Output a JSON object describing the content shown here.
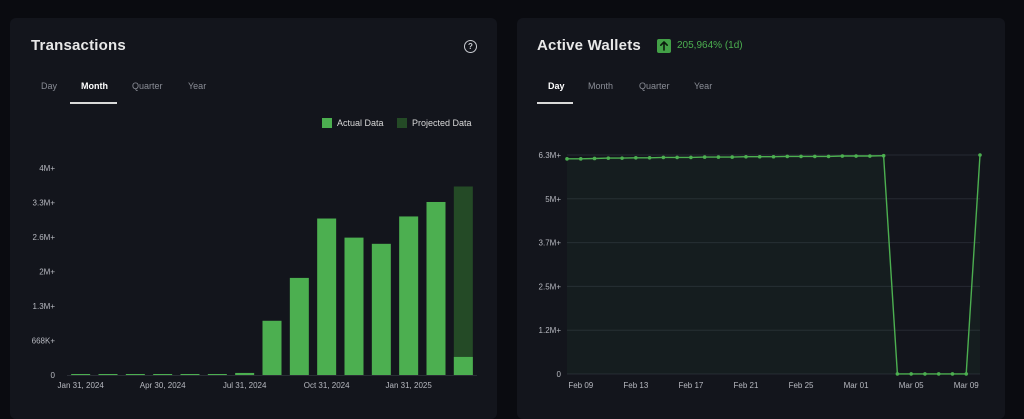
{
  "transactions": {
    "title": "Transactions",
    "help_icon": "help-circle-icon",
    "help_glyph": "?",
    "tabs": [
      {
        "label": "Day",
        "active": false
      },
      {
        "label": "Month",
        "active": true
      },
      {
        "label": "Quarter",
        "active": false
      },
      {
        "label": "Year",
        "active": false
      }
    ],
    "legend": [
      {
        "label": "Actual Data",
        "color": "#4caf50"
      },
      {
        "label": "Projected Data",
        "color": "#244a26"
      }
    ]
  },
  "wallets": {
    "title": "Active Wallets",
    "badge": {
      "icon": "arrow-up-icon",
      "text": "205,964% (1d)",
      "color": "#4caf50"
    },
    "tabs": [
      {
        "label": "Day",
        "active": true
      },
      {
        "label": "Month",
        "active": false
      },
      {
        "label": "Quarter",
        "active": false
      },
      {
        "label": "Year",
        "active": false
      }
    ]
  },
  "chart_data": [
    {
      "type": "bar",
      "title": "Transactions",
      "categories": [
        "Jan 2024",
        "Feb 2024",
        "Mar 2024",
        "Apr 2024",
        "May 2024",
        "Jun 2024",
        "Jul 2024",
        "Aug 2024",
        "Sep 2024",
        "Oct 2024",
        "Nov 2024",
        "Dec 2024",
        "Jan 2025",
        "Feb 2025",
        "Mar 2025"
      ],
      "x_tick_labels": [
        "Jan 31, 2024",
        "Apr 30, 2024",
        "Jul 31, 2024",
        "Oct 31, 2024",
        "Jan 31, 2025"
      ],
      "x_tick_indices": [
        0,
        3,
        6,
        9,
        12
      ],
      "y_tick_labels": [
        "0",
        "668K+",
        "1.3M+",
        "2M+",
        "2.6M+",
        "3.3M+",
        "4M+"
      ],
      "y_tick_values": [
        0,
        668000,
        1336000,
        2004000,
        2672000,
        3340000,
        4008000
      ],
      "ylim": [
        0,
        4008000
      ],
      "series": [
        {
          "name": "Actual Data",
          "values": [
            2000,
            5000,
            8000,
            10000,
            8000,
            12000,
            40000,
            1050000,
            1880000,
            3030000,
            2660000,
            2540000,
            3070000,
            3350000,
            350000
          ]
        },
        {
          "name": "Projected Data",
          "values": [
            0,
            0,
            0,
            0,
            0,
            0,
            0,
            0,
            0,
            0,
            0,
            0,
            0,
            0,
            3650000
          ]
        }
      ],
      "legend_position": "top-right",
      "grid": false
    },
    {
      "type": "area",
      "title": "Active Wallets",
      "x": [
        "Feb 08",
        "Feb 09",
        "Feb 10",
        "Feb 11",
        "Feb 12",
        "Feb 13",
        "Feb 14",
        "Feb 15",
        "Feb 16",
        "Feb 17",
        "Feb 18",
        "Feb 19",
        "Feb 20",
        "Feb 21",
        "Feb 22",
        "Feb 23",
        "Feb 24",
        "Feb 25",
        "Feb 26",
        "Feb 27",
        "Feb 28",
        "Mar 01",
        "Mar 02",
        "Mar 03",
        "Mar 04",
        "Mar 05",
        "Mar 06",
        "Mar 07",
        "Mar 08",
        "Mar 09",
        "Mar 10"
      ],
      "x_tick_labels": [
        "Feb 09",
        "Feb 13",
        "Feb 17",
        "Feb 21",
        "Feb 25",
        "Mar 01",
        "Mar 05",
        "Mar 09"
      ],
      "x_tick_indices": [
        1,
        5,
        9,
        13,
        17,
        21,
        25,
        29
      ],
      "y_tick_labels": [
        "0",
        "1.2M+",
        "2.5M+",
        "3.7M+",
        "5M+",
        "6.3M+"
      ],
      "y_tick_values": [
        0,
        1260000,
        2520000,
        3780000,
        5040000,
        6300000
      ],
      "ylim": [
        0,
        6300000
      ],
      "series": [
        {
          "values": [
            6190000,
            6190000,
            6200000,
            6210000,
            6210000,
            6220000,
            6220000,
            6230000,
            6230000,
            6230000,
            6240000,
            6240000,
            6240000,
            6250000,
            6250000,
            6250000,
            6260000,
            6260000,
            6260000,
            6260000,
            6270000,
            6270000,
            6270000,
            6280000,
            3000,
            3000,
            3000,
            3000,
            3000,
            3000,
            6300000
          ]
        }
      ],
      "grid": true,
      "line_color": "#4caf50"
    }
  ]
}
